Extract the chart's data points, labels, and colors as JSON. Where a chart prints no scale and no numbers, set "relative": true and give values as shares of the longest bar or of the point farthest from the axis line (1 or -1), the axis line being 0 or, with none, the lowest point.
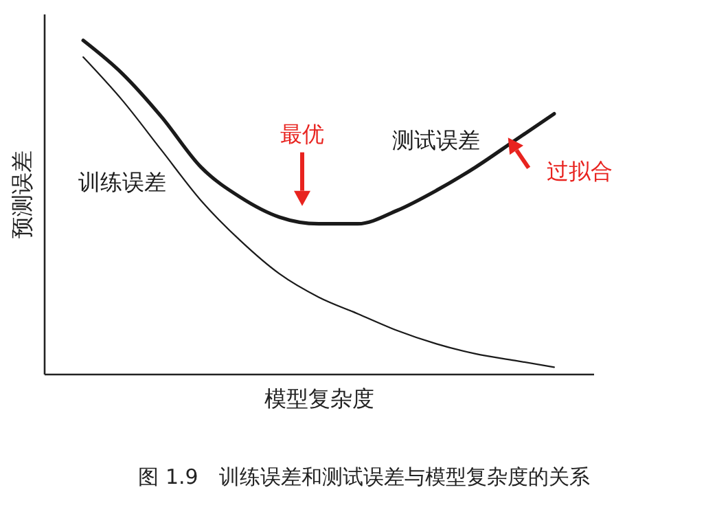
{
  "chart_data": {
    "type": "line",
    "relative": true,
    "xlabel": "模型复杂度",
    "ylabel": "预测误差",
    "categories": [
      null,
      null,
      null,
      null,
      null,
      null,
      null,
      null,
      null,
      null,
      null,
      null,
      null
    ],
    "series": [
      {
        "name": "测试误差",
        "color": "#1a1a1a",
        "values": [
          1,
          0.9,
          0.77,
          0.62,
          0.53,
          0.47,
          0.45,
          0.45,
          0.49,
          0.55,
          0.62,
          0.7,
          0.78
        ]
      },
      {
        "name": "训练误差",
        "color": "#1a1a1a",
        "values": [
          0.95,
          0.82,
          0.67,
          0.52,
          0.4,
          0.3,
          0.23,
          0.18,
          0.13,
          0.09,
          0.06,
          0.04,
          0.02
        ]
      }
    ],
    "annotations": [
      "最优",
      "过拟合",
      "图 1.9　训练误差和测试误差与模型复杂度的关系"
    ]
  }
}
